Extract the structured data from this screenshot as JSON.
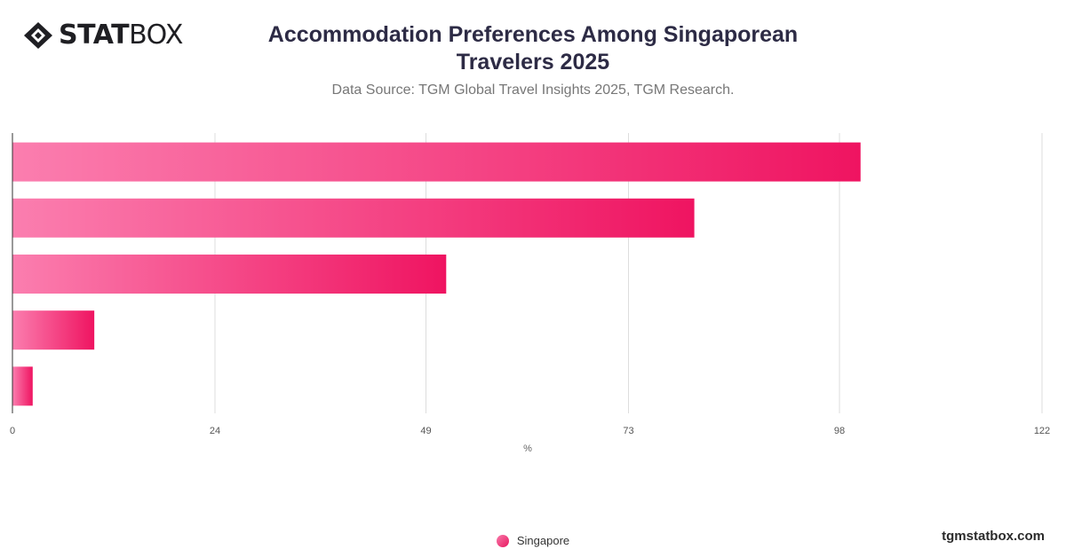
{
  "brand": {
    "logo_bold": "STAT",
    "logo_light": "BOX",
    "logo_icon": "diamond-logo-icon"
  },
  "header": {
    "title_line1": "Accommodation Preferences Among Singaporean",
    "title_line2": "Travelers 2025",
    "subtitle": "Data Source: TGM Global Travel Insights 2025, TGM Research."
  },
  "colors": {
    "bar_start": "#fb7eaf",
    "bar_end": "#ef1461",
    "grid": "#dddddd",
    "axis": "#333333"
  },
  "chart_data": {
    "type": "bar",
    "orientation": "horizontal",
    "categories": [
      "",
      "",
      "",
      "",
      ""
    ],
    "series": [
      {
        "name": "Singapore",
        "values": [
          100.5,
          80.8,
          51.4,
          9.7,
          2.4
        ]
      }
    ],
    "xlabel": "%",
    "ylabel": "",
    "xlim": [
      0,
      122
    ],
    "xticks": [
      0,
      24,
      49,
      73,
      98,
      122
    ],
    "grid": true,
    "legend_position": "bottom-center"
  },
  "legend": {
    "label": "Singapore"
  },
  "footer": {
    "site": "tgmstatbox.com"
  }
}
